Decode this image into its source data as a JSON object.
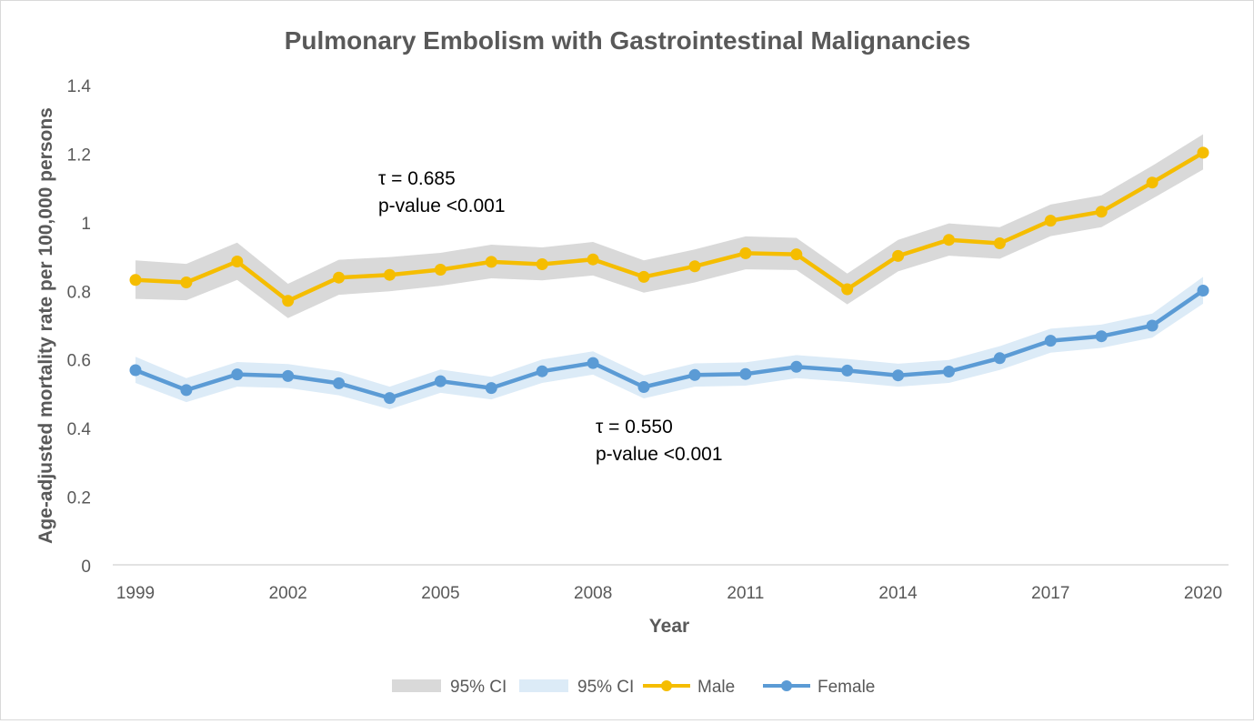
{
  "chart_data": {
    "type": "line",
    "title": "Pulmonary Embolism with Gastrointestinal Malignancies",
    "xlabel": "Year",
    "ylabel": "Age-adjusted mortality rate per 100,000 persons",
    "ylim": [
      0,
      1.4
    ],
    "yticks": [
      "0",
      "0.2",
      "0.4",
      "0.6",
      "0.8",
      "1",
      "1.2",
      "1.4"
    ],
    "xticks": [
      "1999",
      "2002",
      "2005",
      "2008",
      "2011",
      "2014",
      "2017",
      "2020"
    ],
    "x": [
      1999,
      2000,
      2001,
      2002,
      2003,
      2004,
      2005,
      2006,
      2007,
      2008,
      2009,
      2010,
      2011,
      2012,
      2013,
      2014,
      2015,
      2016,
      2017,
      2018,
      2019,
      2020
    ],
    "grid": false,
    "legend_position": "bottom",
    "series": [
      {
        "name": "Male",
        "color": "#f5bd00",
        "values": [
          0.833,
          0.826,
          0.887,
          0.772,
          0.84,
          0.848,
          0.863,
          0.886,
          0.879,
          0.893,
          0.842,
          0.873,
          0.911,
          0.908,
          0.806,
          0.903,
          0.95,
          0.94,
          1.006,
          1.032,
          1.117,
          1.204
        ],
        "ci_lower": [
          0.778,
          0.774,
          0.833,
          0.722,
          0.79,
          0.8,
          0.816,
          0.838,
          0.832,
          0.846,
          0.796,
          0.826,
          0.864,
          0.862,
          0.762,
          0.858,
          0.904,
          0.895,
          0.961,
          0.987,
          1.07,
          1.155
        ],
        "ci_upper": [
          0.89,
          0.88,
          0.942,
          0.822,
          0.892,
          0.9,
          0.912,
          0.936,
          0.928,
          0.944,
          0.89,
          0.922,
          0.96,
          0.956,
          0.852,
          0.95,
          0.998,
          0.987,
          1.053,
          1.08,
          1.166,
          1.258
        ]
      },
      {
        "name": "Female",
        "color": "#5b9bd5",
        "values": [
          0.57,
          0.512,
          0.558,
          0.553,
          0.532,
          0.489,
          0.538,
          0.518,
          0.567,
          0.591,
          0.521,
          0.556,
          0.559,
          0.58,
          0.569,
          0.555,
          0.566,
          0.605,
          0.656,
          0.669,
          0.7,
          0.802
        ],
        "ci_lower": [
          0.533,
          0.477,
          0.522,
          0.518,
          0.497,
          0.456,
          0.504,
          0.485,
          0.533,
          0.557,
          0.488,
          0.522,
          0.525,
          0.547,
          0.536,
          0.522,
          0.533,
          0.571,
          0.621,
          0.635,
          0.665,
          0.764
        ],
        "ci_upper": [
          0.609,
          0.547,
          0.594,
          0.588,
          0.567,
          0.522,
          0.572,
          0.551,
          0.601,
          0.625,
          0.555,
          0.59,
          0.593,
          0.614,
          0.603,
          0.589,
          0.6,
          0.64,
          0.691,
          0.703,
          0.735,
          0.842
        ]
      }
    ],
    "ci_bands": [
      {
        "label": "95% CI",
        "series": "Male",
        "color": "#d9d9d9"
      },
      {
        "label": "95% CI",
        "series": "Female",
        "color": "#dcebf7"
      }
    ],
    "annotations": [
      {
        "line1": "τ = 0.685",
        "line2": "p-value <0.001"
      },
      {
        "line1": "τ = 0.550",
        "line2": "p-value <0.001"
      }
    ],
    "legend": [
      "95% CI",
      "95% CI",
      "Male",
      "Female"
    ]
  }
}
